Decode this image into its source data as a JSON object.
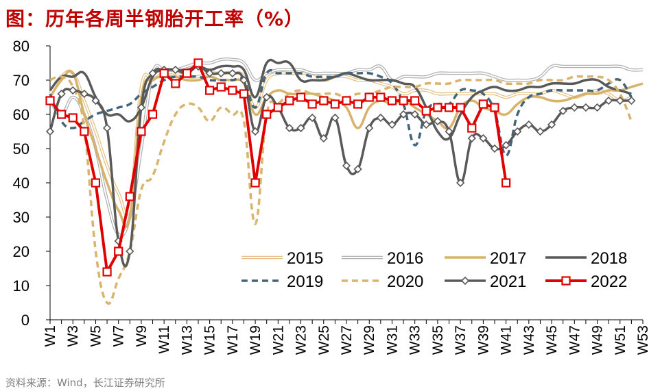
{
  "title": "图：历年各周半钢胎开工率（%）",
  "source": "资料来源：Wind，长江证券研究所",
  "chart_data": {
    "type": "line",
    "title": "图：历年各周半钢胎开工率（%）",
    "ylabel": "",
    "xlabel": "",
    "ylim": [
      0,
      80
    ],
    "yticks": [
      0,
      10,
      20,
      30,
      40,
      50,
      60,
      70,
      80
    ],
    "weeks": [
      "W1",
      "W2",
      "W3",
      "W4",
      "W5",
      "W6",
      "W7",
      "W8",
      "W9",
      "W10",
      "W11",
      "W12",
      "W13",
      "W14",
      "W15",
      "W16",
      "W17",
      "W18",
      "W19",
      "W20",
      "W21",
      "W22",
      "W23",
      "W24",
      "W25",
      "W26",
      "W27",
      "W28",
      "W29",
      "W30",
      "W31",
      "W32",
      "W33",
      "W34",
      "W35",
      "W36",
      "W37",
      "W38",
      "W39",
      "W40",
      "W41",
      "W42",
      "W43",
      "W44",
      "W45",
      "W46",
      "W47",
      "W48",
      "W49",
      "W50",
      "W51",
      "W52",
      "W53"
    ],
    "xtick_labels": [
      "W1",
      "W3",
      "W5",
      "W7",
      "W9",
      "W11",
      "W13",
      "W15",
      "W17",
      "W19",
      "W21",
      "W23",
      "W25",
      "W27",
      "W29",
      "W31",
      "W33",
      "W35",
      "W37",
      "W39",
      "W41",
      "W43",
      "W45",
      "W47",
      "W49",
      "W51",
      "W53"
    ],
    "series": [
      {
        "name": "2015",
        "style": "thin",
        "color": "#e3c185",
        "values": [
          66,
          71,
          72,
          64,
          55,
          45,
          37,
          33,
          68,
          70,
          72,
          72,
          71,
          71,
          72,
          72,
          72,
          71,
          62,
          70,
          72,
          72,
          72,
          72,
          70,
          71,
          71,
          70,
          70,
          69,
          68,
          66,
          67,
          67,
          66,
          66,
          66,
          66,
          66,
          66,
          65,
          66,
          66,
          66,
          67,
          66,
          65,
          66,
          67,
          66,
          64,
          65,
          null
        ]
      },
      {
        "name": "2016",
        "style": "thin",
        "color": "#b0b0b0",
        "values": [
          64,
          60,
          65,
          60,
          50,
          35,
          25,
          30,
          50,
          72,
          73,
          73,
          74,
          75,
          75,
          76,
          76,
          75,
          70,
          72,
          73,
          73,
          73,
          72,
          72,
          72,
          72,
          73,
          73,
          74,
          70,
          71,
          71,
          71,
          72,
          72,
          72,
          72,
          72,
          71,
          70,
          70,
          70,
          71,
          74,
          74,
          74,
          74,
          74,
          74,
          74,
          73,
          73
        ]
      },
      {
        "name": "2017",
        "style": "thick",
        "color": "#d8b26a",
        "values": [
          65,
          70,
          72,
          60,
          50,
          40,
          32,
          30,
          65,
          70,
          71,
          71,
          70,
          70,
          71,
          70,
          70,
          69,
          60,
          65,
          67,
          66,
          66,
          66,
          65,
          64,
          62,
          56,
          62,
          64,
          63,
          64,
          62,
          60,
          58,
          56,
          62,
          64,
          62,
          61,
          60,
          63,
          65,
          65,
          64,
          64,
          65,
          66,
          66,
          67,
          67,
          68,
          69
        ]
      },
      {
        "name": "2018",
        "style": "thick",
        "color": "#595959",
        "values": [
          67,
          71,
          71,
          72,
          65,
          60,
          60,
          58,
          62,
          71,
          73,
          73,
          73,
          74,
          73,
          74,
          74,
          73,
          65,
          75,
          75,
          75,
          70,
          70,
          70,
          71,
          72,
          71,
          70,
          70,
          70,
          69,
          68,
          62,
          55,
          53,
          60,
          65,
          67,
          68,
          67,
          67,
          68,
          68,
          69,
          69,
          69,
          70,
          70,
          68,
          67,
          66,
          null
        ]
      },
      {
        "name": "2019",
        "style": "dash",
        "color": "#44647c",
        "values": [
          66,
          58,
          56,
          58,
          60,
          61,
          62,
          63,
          66,
          68,
          70,
          71,
          71,
          71,
          70,
          70,
          70,
          70,
          62,
          72,
          72,
          72,
          72,
          71,
          71,
          71,
          72,
          72,
          72,
          71,
          69,
          63,
          51,
          61,
          63,
          63,
          67,
          67,
          66,
          61,
          48,
          60,
          65,
          66,
          67,
          67,
          67,
          67,
          67,
          69,
          70,
          65,
          null
        ]
      },
      {
        "name": "2020",
        "style": "dash",
        "color": "#d9b46c",
        "values": [
          70,
          71,
          68,
          56,
          20,
          5,
          12,
          20,
          38,
          42,
          52,
          60,
          63,
          62,
          58,
          62,
          60,
          58,
          28,
          60,
          63,
          66,
          67,
          66,
          66,
          66,
          65,
          66,
          66,
          67,
          68,
          68,
          68,
          69,
          69,
          69,
          70,
          70,
          70,
          70,
          69,
          69,
          69,
          70,
          70,
          70,
          71,
          71,
          71,
          70,
          66,
          58,
          null
        ]
      },
      {
        "name": "2021",
        "style": "diamond",
        "color": "#595959",
        "values": [
          55,
          66,
          67,
          66,
          64,
          56,
          23,
          20,
          62,
          72,
          73,
          73,
          72,
          74,
          72,
          72,
          72,
          70,
          55,
          65,
          62,
          56,
          56,
          59,
          53,
          59,
          45,
          44,
          56,
          59,
          57,
          60,
          60,
          57,
          58,
          55,
          40,
          53,
          53,
          50,
          51,
          55,
          57,
          55,
          57,
          61,
          62,
          62,
          62,
          64,
          64,
          64,
          null
        ]
      },
      {
        "name": "2022",
        "style": "square",
        "color": "#e00000",
        "values": [
          64,
          60,
          59,
          55,
          40,
          14,
          20,
          36,
          55,
          60,
          72,
          69,
          72,
          75,
          67,
          68,
          67,
          66,
          40,
          60,
          62,
          64,
          65,
          63,
          64,
          63,
          64,
          63,
          65,
          65,
          64,
          64,
          64,
          61,
          62,
          62,
          62,
          56,
          63,
          62,
          40,
          null,
          null,
          null,
          null,
          null,
          null,
          null,
          null,
          null,
          null,
          null,
          null
        ]
      }
    ],
    "legend": [
      "2015",
      "2016",
      "2017",
      "2018",
      "2019",
      "2020",
      "2021",
      "2022"
    ],
    "legend_position": "bottom-right inside plot"
  }
}
